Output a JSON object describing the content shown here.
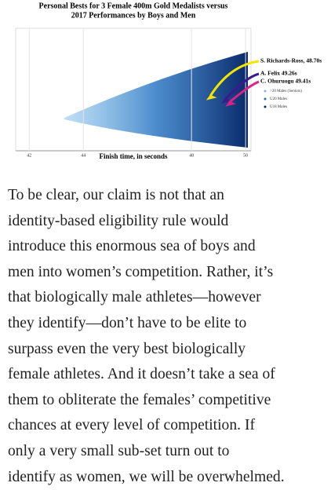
{
  "figure": {
    "title_lines": [
      "Personal Bests for 3 Female 400m Gold Medalists versus",
      "2017 Performances by Boys and Men"
    ],
    "x_label": "Finish time, in seconds",
    "xlim": [
      41.5,
      50.2
    ],
    "xticks": [
      42,
      44,
      48,
      50
    ],
    "highlights": [
      {
        "label": "S. Richards-Ross, 48.70s",
        "value": 48.7,
        "color": "#f2e600"
      },
      {
        "label": "A. Felix 49.26s",
        "value": 49.26,
        "color": "#3b1a8f"
      },
      {
        "label": "C. Ohuruogu 49.41s",
        "value": 49.41,
        "color": "#e0208a"
      }
    ],
    "legend": [
      ">20 Males (Seniors)",
      "U20 Males",
      "U18 Males"
    ]
  },
  "article": {
    "lines": [
      "To be clear, our claim is not that an",
      "identity-based eligibility rule would",
      "introduce this enormous sea of boys and",
      "men into women’s competition. Rather, it’s",
      "that biologically male athletes—however",
      "they identify—don’t have to be elite to",
      "surpass even the very best biologically",
      "female athletes. And it doesn’t take a sea of",
      "them to obliterate the females’ competitive",
      "chances at every level of competition. If",
      "only a very small sub-set turn out to",
      "identify as women, we will be overwhelmed."
    ]
  }
}
